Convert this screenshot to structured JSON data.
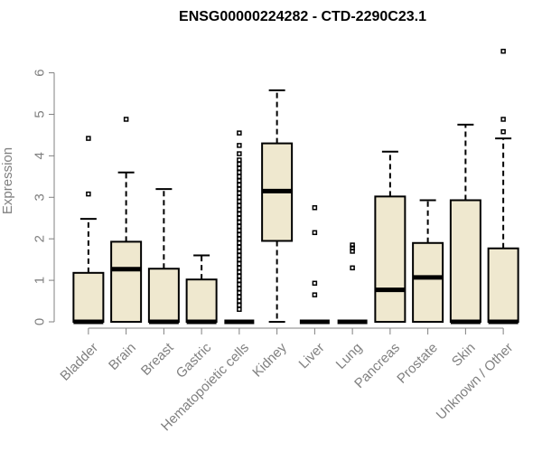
{
  "chart_data": {
    "type": "boxplot",
    "title": "ENSG00000224282 - CTD-2290C23.1",
    "ylabel": "Expression",
    "xlabel": "",
    "ylim": [
      0,
      6.6
    ],
    "yticks": [
      0,
      1,
      2,
      3,
      4,
      5,
      6
    ],
    "box_fill": "#efe8cf",
    "grid": false,
    "categories": [
      "Bladder",
      "Brain",
      "Breast",
      "Gastric",
      "Hematopoietic cells",
      "Kidney",
      "Liver",
      "Lung",
      "Pancreas",
      "Prostate",
      "Skin",
      "Unknown / Other"
    ],
    "boxes": [
      {
        "min": 0,
        "q1": 0,
        "median": 0,
        "q3": 1.18,
        "max": 2.48,
        "outliers": [
          3.08,
          4.42
        ]
      },
      {
        "min": 0,
        "q1": 0,
        "median": 1.27,
        "q3": 1.93,
        "max": 3.6,
        "outliers": [
          4.88
        ]
      },
      {
        "min": 0,
        "q1": 0,
        "median": 0,
        "q3": 1.28,
        "max": 3.2,
        "outliers": []
      },
      {
        "min": 0,
        "q1": 0,
        "median": 0,
        "q3": 1.02,
        "max": 1.6,
        "outliers": []
      },
      {
        "min": 0,
        "q1": 0,
        "median": 0,
        "q3": 0,
        "max": 0,
        "outliers": [
          0.3,
          0.4,
          0.5,
          0.6,
          0.7,
          0.8,
          0.9,
          1.0,
          1.1,
          1.2,
          1.3,
          1.4,
          1.5,
          1.6,
          1.7,
          1.8,
          1.9,
          2.0,
          2.1,
          2.2,
          2.3,
          2.4,
          2.5,
          2.6,
          2.7,
          2.8,
          2.9,
          3.0,
          3.1,
          3.2,
          3.3,
          3.4,
          3.5,
          3.6,
          3.7,
          3.8,
          3.9,
          4.05,
          4.25,
          4.55
        ]
      },
      {
        "min": 0,
        "q1": 1.95,
        "median": 3.15,
        "q3": 4.3,
        "max": 5.58,
        "outliers": []
      },
      {
        "min": 0,
        "q1": 0,
        "median": 0,
        "q3": 0,
        "max": 0,
        "outliers": [
          0.65,
          0.93,
          2.15,
          2.75
        ]
      },
      {
        "min": 0,
        "q1": 0,
        "median": 0,
        "q3": 0,
        "max": 0,
        "outliers": [
          1.3,
          1.7,
          1.78,
          1.85
        ]
      },
      {
        "min": 0,
        "q1": 0,
        "median": 0.77,
        "q3": 3.02,
        "max": 4.1,
        "outliers": []
      },
      {
        "min": 0,
        "q1": 0,
        "median": 1.07,
        "q3": 1.9,
        "max": 2.93,
        "outliers": []
      },
      {
        "min": 0,
        "q1": 0,
        "median": 0,
        "q3": 2.93,
        "max": 4.75,
        "outliers": []
      },
      {
        "min": 0,
        "q1": 0,
        "median": 0,
        "q3": 1.77,
        "max": 4.42,
        "outliers": [
          4.58,
          4.88,
          6.52
        ]
      }
    ]
  }
}
